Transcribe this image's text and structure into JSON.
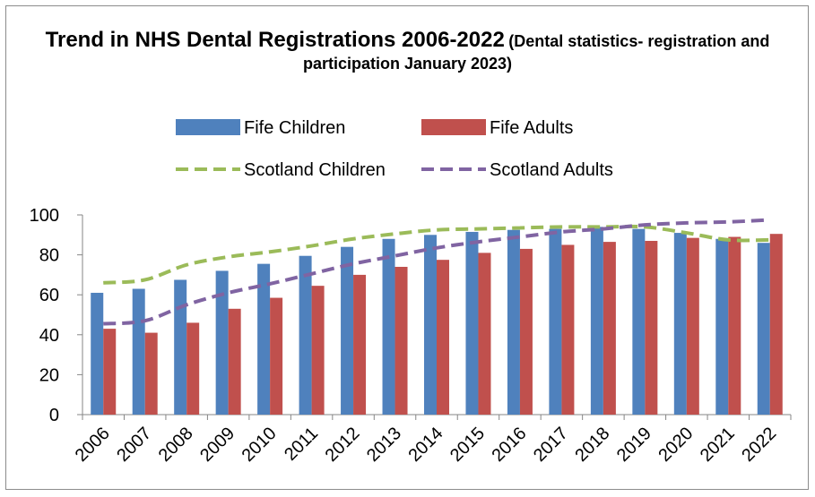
{
  "chart_data": {
    "type": "bar",
    "title": "Trend in NHS Dental Registrations 2006-2022",
    "subtitle": "(Dental statistics- registration and participation January 2023)",
    "xlabel": "",
    "ylabel": "",
    "ylim": [
      0,
      100
    ],
    "yticks": [
      "0",
      "20",
      "40",
      "60",
      "80",
      "100"
    ],
    "grid": false,
    "legend_position": "top",
    "categories": [
      "2006",
      "2007",
      "2008",
      "2009",
      "2010",
      "2011",
      "2012",
      "2013",
      "2014",
      "2015",
      "2016",
      "2017",
      "2018",
      "2019",
      "2020",
      "2021",
      "2022"
    ],
    "series": [
      {
        "name": "Fife Children",
        "kind": "bar",
        "color": "#4f81bd",
        "values": [
          61,
          63,
          67.5,
          72,
          75.5,
          79.5,
          84,
          88,
          90,
          91.5,
          92.5,
          93,
          94,
          93,
          91,
          88,
          86
        ]
      },
      {
        "name": "Fife Adults",
        "kind": "bar",
        "color": "#c0504d",
        "values": [
          43,
          41,
          46,
          53,
          58.5,
          64.5,
          70,
          74,
          77.5,
          81,
          83,
          85,
          86.5,
          87,
          88.5,
          89,
          90.5
        ]
      },
      {
        "name": "Scotland Children",
        "kind": "dashed-line",
        "color": "#9bbb59",
        "values": [
          66,
          67.5,
          75,
          79,
          81.5,
          84.5,
          88,
          90.5,
          92.5,
          93,
          93.5,
          94,
          94,
          94,
          91,
          87.5,
          87.5
        ]
      },
      {
        "name": "Scotland Adults",
        "kind": "dashed-line",
        "color": "#8064a2",
        "values": [
          45.5,
          47,
          55,
          61,
          65.5,
          70.5,
          75.5,
          79.5,
          83.5,
          86.5,
          89,
          91.5,
          93,
          95,
          96,
          96.5,
          97.5
        ]
      }
    ]
  }
}
